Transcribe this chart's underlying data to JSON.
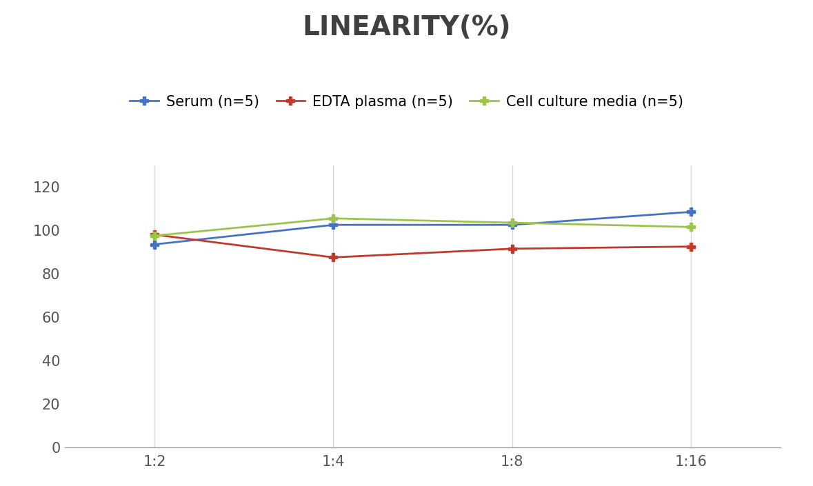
{
  "title": "LINEARITY(%)",
  "x_labels": [
    "1:2",
    "1:4",
    "1:8",
    "1:16"
  ],
  "x_positions": [
    0,
    1,
    2,
    3
  ],
  "series": [
    {
      "label": "Serum (n=5)",
      "values": [
        93.5,
        102.5,
        102.5,
        108.5
      ],
      "color": "#4472C4",
      "marker": "P",
      "marker_size": 9
    },
    {
      "label": "EDTA plasma (n=5)",
      "values": [
        98.0,
        87.5,
        91.5,
        92.5
      ],
      "color": "#C0392B",
      "marker": "P",
      "marker_size": 9
    },
    {
      "label": "Cell culture media (n=5)",
      "values": [
        97.5,
        105.5,
        103.5,
        101.5
      ],
      "color": "#9DC44A",
      "marker": "P",
      "marker_size": 9
    }
  ],
  "ylim": [
    0,
    130
  ],
  "yticks": [
    0,
    20,
    40,
    60,
    80,
    100,
    120
  ],
  "grid_color": "#D9D9D9",
  "background_color": "#FFFFFF",
  "title_fontsize": 28,
  "legend_fontsize": 15,
  "tick_fontsize": 15,
  "title_color": "#404040"
}
